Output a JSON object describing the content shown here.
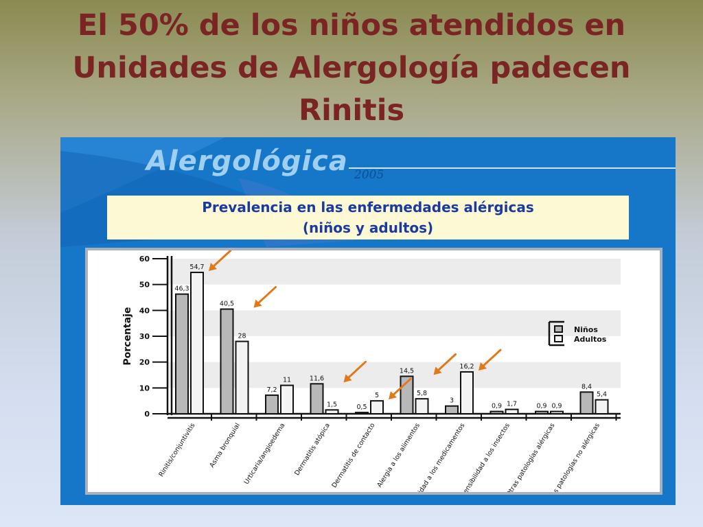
{
  "slide": {
    "title": "El 50% de los niños atendidos en Unidades de Alergología padecen Rinitis"
  },
  "panel": {
    "brand": "Alergológica",
    "year": "2005",
    "chart_title_line1": "Prevalencia en las enfermedades alérgicas",
    "chart_title_line2": "(niños y adultos)"
  },
  "colors": {
    "title": "#7a2424",
    "panel_blue": "#1677c8",
    "chart_title_text": "#1a3aa0",
    "chart_title_bg": "#fdf9d4",
    "arrows": "#e07a18"
  },
  "chart_data": {
    "type": "bar",
    "title": "Prevalencia en las enfermedades alérgicas (niños y adultos)",
    "ylabel": "Porcentaje",
    "xlabel": "",
    "ylim": [
      0,
      60
    ],
    "yticks": [
      0,
      10,
      20,
      30,
      40,
      50,
      60
    ],
    "legend_position": "right",
    "grid": "alternating horizontal bands",
    "categories": [
      "Rinitis/conjuntivitis",
      "Asma bronquial",
      "Urticaria/angioedema",
      "Dermatitis atópica",
      "Dermatitis de contacto",
      "Alergia a los alimentos",
      "Hipersensibilidad a los medicamentos",
      "Hipersensibilidad a los insectos",
      "Otras patologías alérgicas",
      "Otras patologías no alérgicas"
    ],
    "series": [
      {
        "name": "Niños",
        "color": "#b8b8b8",
        "values": [
          46.3,
          40.5,
          7.2,
          11.6,
          0.5,
          14.5,
          3,
          0.9,
          0.9,
          8.4
        ],
        "labels": [
          "46,3",
          "40,5",
          "7,2",
          "11,6",
          "0,5",
          "14,5",
          "3",
          "0,9",
          "0,9",
          "8,4"
        ]
      },
      {
        "name": "Adultos",
        "color": "#f3f3f3",
        "values": [
          54.7,
          28,
          11,
          1.5,
          5,
          5.8,
          16.2,
          1.7,
          0.9,
          5.4
        ],
        "labels": [
          "54,7",
          "28",
          "11",
          "1,5",
          "5",
          "5,8",
          "16,2",
          "1,7",
          "0,9",
          "5,4"
        ]
      }
    ],
    "highlight_arrows_on": [
      "Rinitis/conjuntivitis",
      "Asma bronquial",
      "Dermatitis atópica",
      "Dermatitis de contacto",
      "Alergia a los alimentos",
      "Hipersensibilidad a los medicamentos"
    ]
  }
}
